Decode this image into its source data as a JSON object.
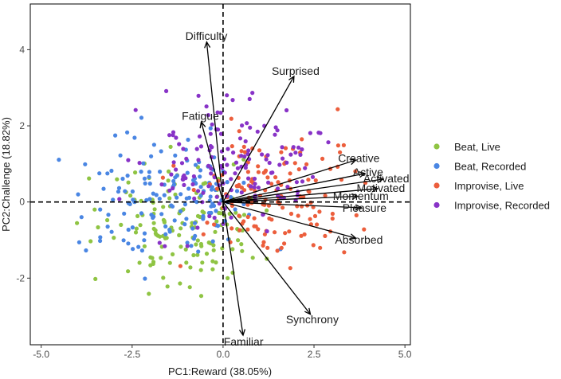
{
  "chart_data": {
    "type": "scatter",
    "subtype": "pca-biplot",
    "xlabel": "PC1:Reward (38.05%)",
    "ylabel": "PC2:Challenge (18.82%)",
    "xlim": [
      -5.3,
      5.15
    ],
    "ylim": [
      -3.75,
      5.2
    ],
    "xticks": [
      -5.0,
      -2.5,
      0.0,
      2.5,
      5.0
    ],
    "xtick_labels": [
      "-5.0",
      "-2.5",
      "0.0",
      "2.5",
      "5.0"
    ],
    "yticks": [
      -2,
      0,
      2,
      4
    ],
    "ytick_labels": [
      "-2",
      "0",
      "2",
      "4"
    ],
    "reference_lines": {
      "x": 0,
      "y": 0,
      "style": "dashed"
    },
    "legend_position": "right",
    "series": [
      {
        "name": "Beat, Live",
        "color": "#8fc443",
        "n_points": 150
      },
      {
        "name": "Beat, Recorded",
        "color": "#4a86e3",
        "n_points": 150
      },
      {
        "name": "Improvise, Live",
        "color": "#ec5e3c",
        "n_points": 150
      },
      {
        "name": "Improvise, Recorded",
        "color": "#8833c7",
        "n_points": 150
      }
    ],
    "loadings": [
      {
        "label": "Difficulty",
        "x": -0.45,
        "y": 4.2
      },
      {
        "label": "Surprised",
        "x": 1.95,
        "y": 3.3
      },
      {
        "label": "Fatigue",
        "x": -0.6,
        "y": 2.1
      },
      {
        "label": "Creative",
        "x": 3.65,
        "y": 1.1
      },
      {
        "label": "Active",
        "x": 3.9,
        "y": 0.75
      },
      {
        "label": "Activated",
        "x": 4.4,
        "y": 0.6
      },
      {
        "label": "Motivated",
        "x": 4.25,
        "y": 0.35
      },
      {
        "label": "Momentum",
        "x": 3.7,
        "y": 0.15
      },
      {
        "label": "Pleasure",
        "x": 3.8,
        "y": -0.15
      },
      {
        "label": "Absorbed",
        "x": 3.65,
        "y": -0.95
      },
      {
        "label": "Synchrony",
        "x": 2.4,
        "y": -2.95
      },
      {
        "label": "Familiar",
        "x": 0.55,
        "y": -3.5
      }
    ]
  }
}
